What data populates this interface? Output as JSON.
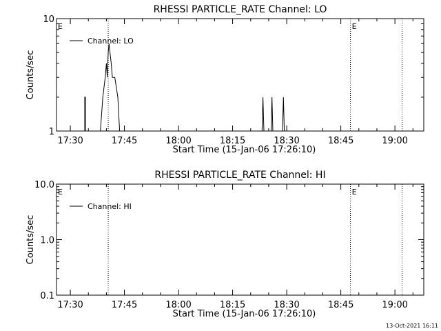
{
  "page": {
    "stamp": "13-Oct-2021 16:11"
  },
  "chart_data": [
    {
      "type": "line",
      "title": "RHESSI PARTICLE_RATE Channel: LO",
      "xlabel": "Start Time (15-Jan-06 17:26:10)",
      "ylabel": "Counts/sec",
      "yscale": "log",
      "ylim": [
        1,
        10
      ],
      "y_ticks": [
        {
          "value": 1,
          "label": "1"
        },
        {
          "value": 10,
          "label": "10"
        }
      ],
      "xlim": [
        "17:26:10",
        "19:08:00"
      ],
      "x_ticks": [
        {
          "value": "17:30",
          "label": "17:30"
        },
        {
          "value": "17:45",
          "label": "17:45"
        },
        {
          "value": "18:00",
          "label": "18:00"
        },
        {
          "value": "18:15",
          "label": "18:15"
        },
        {
          "value": "18:30",
          "label": "18:30"
        },
        {
          "value": "18:45",
          "label": "18:45"
        },
        {
          "value": "19:00",
          "label": "19:00"
        }
      ],
      "legend": {
        "label": "Channel: LO",
        "placement": "top-left"
      },
      "markers": [
        {
          "time": "17:26:10",
          "label": "E"
        },
        {
          "time": "17:40:30",
          "label": ""
        },
        {
          "time": "18:47:40",
          "label": "E"
        },
        {
          "time": "19:02:00",
          "label": ""
        }
      ],
      "series": [
        {
          "values": [
            [
              "17:34:00",
              1
            ],
            [
              "17:34:00",
              2
            ],
            [
              "17:34:10",
              2
            ],
            [
              "17:34:10",
              1
            ],
            [
              "17:38:20",
              1
            ],
            [
              "17:39:00",
              2
            ],
            [
              "17:39:40",
              3
            ],
            [
              "17:40:00",
              4
            ],
            [
              "17:40:15",
              3
            ],
            [
              "17:40:30",
              5
            ],
            [
              "17:40:45",
              6
            ],
            [
              "17:41:00",
              5
            ],
            [
              "17:41:20",
              4
            ],
            [
              "17:41:40",
              3
            ],
            [
              "17:42:20",
              3
            ],
            [
              "17:43:10",
              2
            ],
            [
              "17:43:40",
              1
            ],
            [
              "18:23:10",
              1
            ],
            [
              "18:23:25",
              2
            ],
            [
              "18:23:40",
              1
            ],
            [
              "18:25:40",
              1
            ],
            [
              "18:25:55",
              2
            ],
            [
              "18:26:10",
              1
            ],
            [
              "18:28:50",
              1
            ],
            [
              "18:29:05",
              2
            ],
            [
              "18:29:20",
              1
            ]
          ]
        }
      ]
    },
    {
      "type": "line",
      "title": "RHESSI PARTICLE_RATE Channel: HI",
      "xlabel": "Start Time (15-Jan-06 17:26:10)",
      "ylabel": "Counts/sec",
      "yscale": "log",
      "ylim": [
        0.1,
        10
      ],
      "y_ticks": [
        {
          "value": 10,
          "label": "10.0"
        },
        {
          "value": 1,
          "label": "1.0"
        },
        {
          "value": 0.1,
          "label": "0.1"
        }
      ],
      "xlim": [
        "17:26:10",
        "19:08:00"
      ],
      "x_ticks": [
        {
          "value": "17:30",
          "label": "17:30"
        },
        {
          "value": "17:45",
          "label": "17:45"
        },
        {
          "value": "18:00",
          "label": "18:00"
        },
        {
          "value": "18:15",
          "label": "18:15"
        },
        {
          "value": "18:30",
          "label": "18:30"
        },
        {
          "value": "18:45",
          "label": "18:45"
        },
        {
          "value": "19:00",
          "label": "19:00"
        }
      ],
      "legend": {
        "label": "Channel: HI",
        "placement": "top-left"
      },
      "markers": [
        {
          "time": "17:26:10",
          "label": "E"
        },
        {
          "time": "17:40:30",
          "label": ""
        },
        {
          "time": "18:47:40",
          "label": "E"
        },
        {
          "time": "19:02:00",
          "label": ""
        }
      ],
      "series": [
        {
          "values": []
        }
      ]
    }
  ]
}
